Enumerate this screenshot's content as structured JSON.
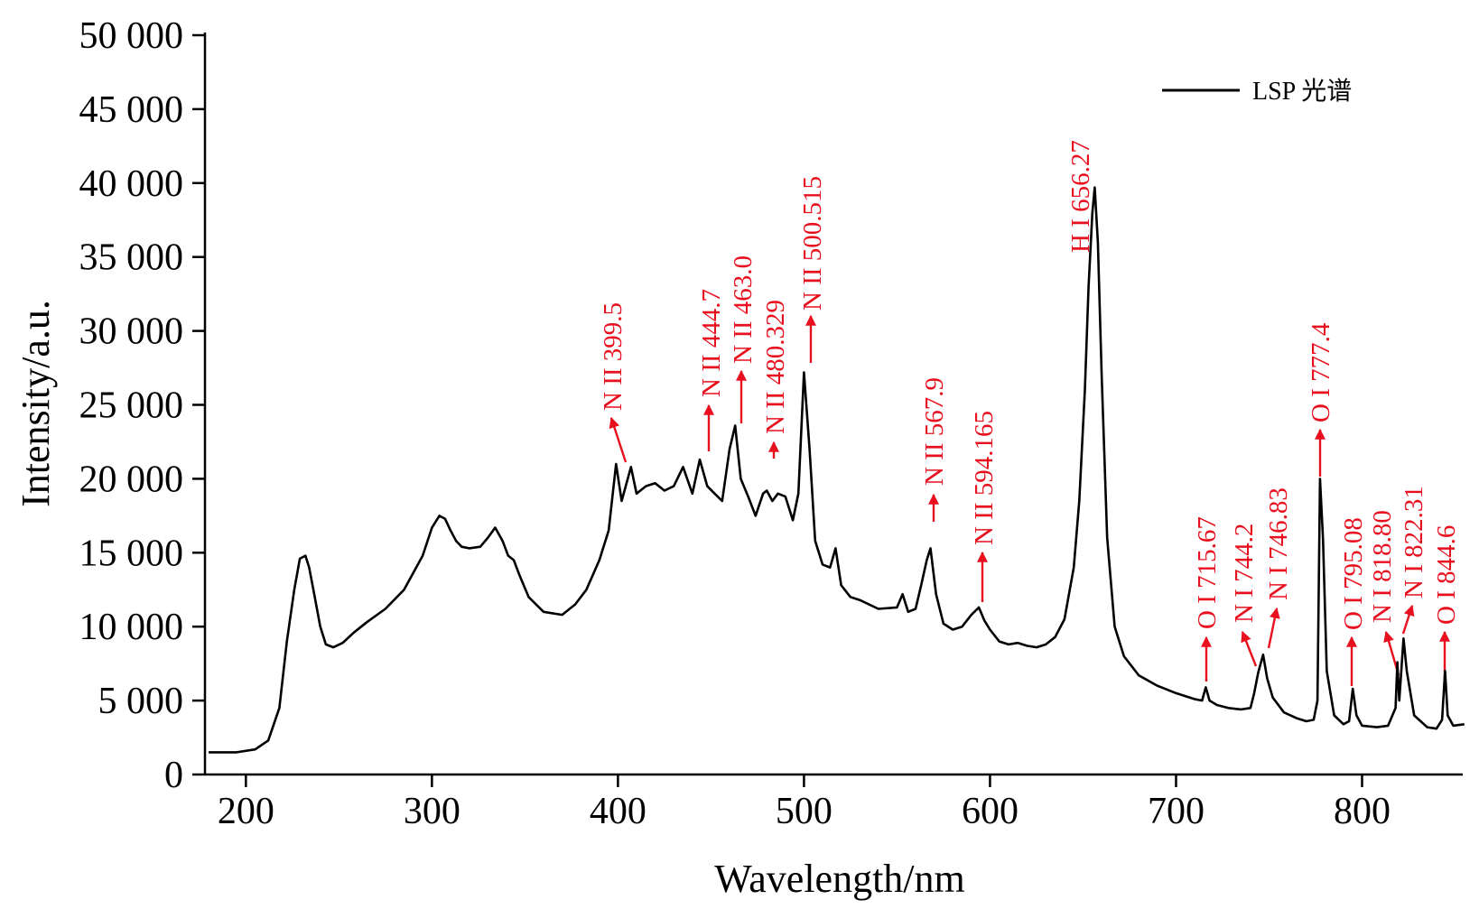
{
  "chart_data": {
    "type": "line",
    "xlabel": "Wavelength/nm",
    "ylabel": "Intensity/a.u.",
    "xlim": [
      178,
      858
    ],
    "ylim": [
      0,
      50000
    ],
    "xticks": [
      200,
      300,
      400,
      500,
      600,
      700,
      800
    ],
    "xtick_labels": [
      "200",
      "300",
      "400",
      "500",
      "600",
      "700",
      "800"
    ],
    "yticks": [
      0,
      5000,
      10000,
      15000,
      20000,
      25000,
      30000,
      35000,
      40000,
      45000,
      50000
    ],
    "ytick_labels": [
      "0",
      "5 000",
      "10 000",
      "15 000",
      "20 000",
      "25 000",
      "30 000",
      "35 000",
      "40 000",
      "45 000",
      "50 000"
    ],
    "grid": false,
    "legend_position": "top-right",
    "colors": {
      "series": "#000000",
      "annotation": "#e8101e"
    },
    "series": [
      {
        "name": "LSP 光谱",
        "x": [
          180,
          195,
          205,
          212,
          218,
          222,
          226,
          229,
          232,
          234,
          237,
          240,
          243,
          247,
          252,
          258,
          265,
          275,
          285,
          295,
          300,
          304,
          307,
          310,
          313,
          316,
          320,
          326,
          330,
          334,
          338,
          341,
          344,
          347,
          352,
          360,
          370,
          377,
          383,
          390,
          395,
          399,
          402,
          407,
          410,
          415,
          420,
          425,
          430,
          435,
          440,
          444,
          448,
          452,
          456,
          460,
          463,
          466,
          470,
          474,
          478,
          480,
          483,
          486,
          490,
          494,
          497,
          500,
          503,
          506,
          510,
          514,
          517,
          520,
          525,
          530,
          540,
          550,
          553,
          556,
          560,
          563,
          566,
          568,
          571,
          575,
          580,
          585,
          590,
          594,
          597,
          600,
          605,
          610,
          615,
          620,
          625,
          630,
          635,
          640,
          645,
          648,
          651,
          653,
          655,
          656.3,
          658,
          660,
          663,
          667,
          672,
          680,
          690,
          700,
          710,
          714,
          716,
          718,
          722,
          728,
          735,
          740,
          742,
          744.2,
          746.8,
          749,
          752,
          758,
          765,
          770,
          774,
          776,
          777.4,
          779,
          781,
          785,
          790,
          793,
          795,
          797,
          800,
          808,
          814,
          818,
          819,
          820,
          822.3,
          824,
          828,
          835,
          840,
          843,
          844.6,
          846,
          849,
          855
        ],
        "values": [
          1500,
          1500,
          1700,
          2300,
          4500,
          9000,
          12500,
          14600,
          14800,
          14000,
          12000,
          10000,
          8800,
          8600,
          8900,
          9600,
          10300,
          11200,
          12500,
          14800,
          16700,
          17500,
          17300,
          16500,
          15800,
          15400,
          15300,
          15400,
          16000,
          16700,
          15800,
          14800,
          14500,
          13500,
          12000,
          11000,
          10800,
          11500,
          12500,
          14500,
          16500,
          21000,
          18500,
          20800,
          19000,
          19500,
          19700,
          19200,
          19500,
          20800,
          19000,
          21300,
          19500,
          19000,
          18500,
          22000,
          23600,
          20000,
          18800,
          17500,
          19000,
          19200,
          18500,
          19000,
          18800,
          17200,
          19000,
          27200,
          22000,
          15800,
          14200,
          14000,
          15300,
          12800,
          12000,
          11800,
          11200,
          11300,
          12200,
          11000,
          11200,
          12800,
          14500,
          15300,
          12200,
          10200,
          9800,
          10000,
          10800,
          11300,
          10400,
          9800,
          9000,
          8800,
          8900,
          8700,
          8600,
          8800,
          9300,
          10500,
          14000,
          18500,
          26000,
          33000,
          38000,
          39700,
          36000,
          27000,
          16000,
          10000,
          8000,
          6700,
          6000,
          5500,
          5100,
          5000,
          5900,
          5000,
          4700,
          4500,
          4400,
          4500,
          5500,
          6900,
          8100,
          6500,
          5200,
          4200,
          3800,
          3600,
          3700,
          5000,
          20000,
          16000,
          7000,
          4000,
          3400,
          3600,
          5800,
          4000,
          3300,
          3200,
          3300,
          4500,
          7600,
          5000,
          9200,
          7000,
          4000,
          3200,
          3100,
          3700,
          7000,
          4000,
          3300,
          3400
        ]
      }
    ],
    "annotations": [
      {
        "label": "N II 399.5",
        "x": 399.5
      },
      {
        "label": "N II 444.7",
        "x": 444.7
      },
      {
        "label": "N II 463.0",
        "x": 463.0
      },
      {
        "label": "N II 480.329",
        "x": 480.329
      },
      {
        "label": "N II 500.515",
        "x": 500.515
      },
      {
        "label": "N II 567.9",
        "x": 567.9
      },
      {
        "label": "N II 594.165",
        "x": 594.165
      },
      {
        "label": "H I 656.27",
        "x": 656.27
      },
      {
        "label": "O I 715.67",
        "x": 715.67
      },
      {
        "label": "N I 744.2",
        "x": 744.2
      },
      {
        "label": "N I 746.83",
        "x": 746.83
      },
      {
        "label": "O I 777.4",
        "x": 777.4
      },
      {
        "label": "O I 795.08",
        "x": 795.08
      },
      {
        "label": "N I 818.80",
        "x": 818.8
      },
      {
        "label": "N I 822.31",
        "x": 822.31
      },
      {
        "label": "O I 844.6",
        "x": 844.6
      }
    ]
  }
}
